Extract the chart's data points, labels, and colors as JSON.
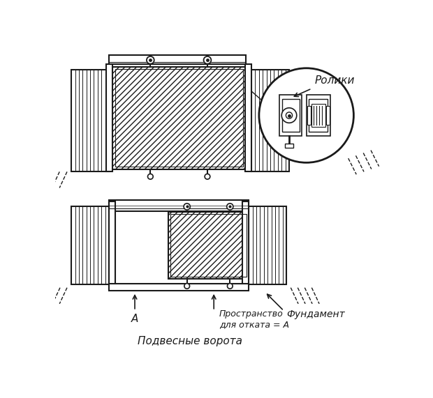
{
  "bg_color": "#ffffff",
  "line_color": "#1a1a1a",
  "title": "Подвесные ворота",
  "label_roliki": "Ролики",
  "label_A": "А",
  "label_space": "Пространство\nдля отката = А",
  "label_fundament": "Фундамент"
}
